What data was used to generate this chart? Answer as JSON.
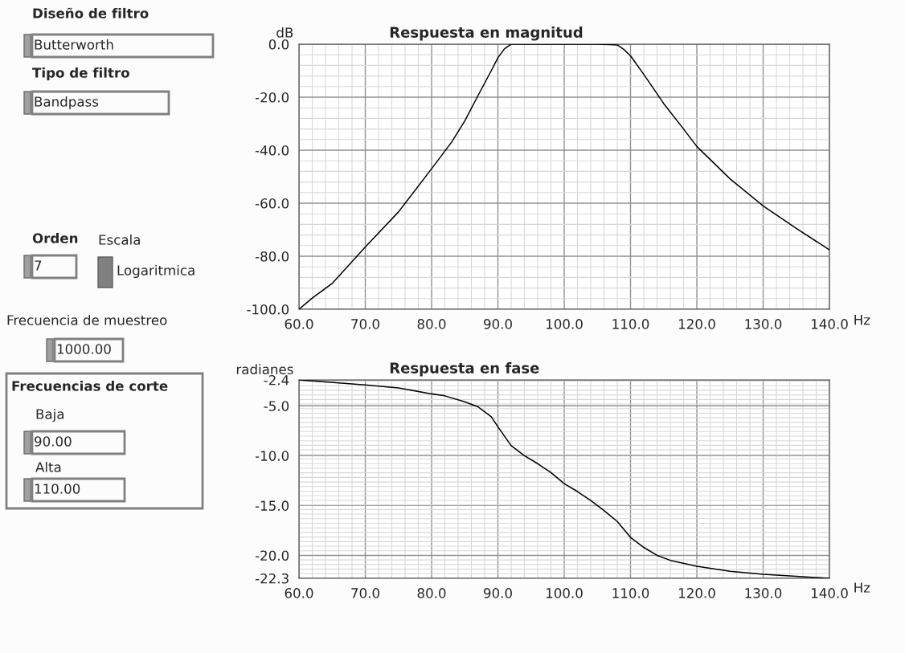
{
  "chart_data": [
    {
      "type": "other",
      "annotations": [
        "Diseño de filtro",
        "Butterworth",
        "Tipo de filtro",
        "Bandpass",
        "Orden",
        "7",
        "Escala",
        "Logaritmica",
        "Frecuencia de muestreo",
        "1000.00",
        "Frecuencias de corte",
        "Baja",
        "90.00",
        "Alta",
        "110.00"
      ]
    },
    {
      "type": "line",
      "title": "Respuesta en magnitud",
      "ylabel": "dB",
      "xlabel": "Hz",
      "x": [
        60,
        62,
        65,
        70,
        75,
        80,
        83,
        85,
        87,
        89,
        90,
        91,
        92,
        95,
        100,
        105,
        108,
        109,
        110,
        112,
        115,
        118,
        120,
        125,
        130,
        135,
        140
      ],
      "series": [
        {
          "color": "#000000",
          "values": [
            -100,
            -95.8,
            -90.3,
            -76.5,
            -63.3,
            -47,
            -37,
            -29,
            -19.4,
            -10,
            -5.1,
            -1.7,
            0,
            0,
            0,
            0,
            -0.3,
            -2,
            -4.4,
            -11.4,
            -22.4,
            -32,
            -38.6,
            -50.8,
            -61,
            -69.5,
            -77.6
          ]
        }
      ],
      "xlim": [
        60,
        140
      ],
      "ylim": [
        -100,
        0
      ],
      "xticks": [
        {
          "value": 60,
          "label": "60.0"
        },
        {
          "value": 70,
          "label": "70.0"
        },
        {
          "value": 80,
          "label": "80.0"
        },
        {
          "value": 90,
          "label": "90.0"
        },
        {
          "value": 100,
          "label": "100.0"
        },
        {
          "value": 110,
          "label": "110.0"
        },
        {
          "value": 120,
          "label": "120.0"
        },
        {
          "value": 130,
          "label": "130.0"
        },
        {
          "value": 140,
          "label": "140.0"
        }
      ],
      "yticks": [
        {
          "value": -100,
          "label": "-100.0"
        },
        {
          "value": -80,
          "label": "-80.0"
        },
        {
          "value": -60,
          "label": "-60.0"
        },
        {
          "value": -40,
          "label": "-40.0"
        },
        {
          "value": -20,
          "label": "-20.0"
        },
        {
          "value": 0,
          "label": "0.0"
        }
      ],
      "grid": true
    },
    {
      "type": "line",
      "title": "Respuesta en fase",
      "ylabel": "radianes",
      "xlabel": "Hz",
      "x": [
        60,
        70,
        75,
        80,
        82,
        85,
        87,
        89,
        90,
        92,
        94,
        96,
        98,
        100,
        102,
        104,
        106,
        108,
        110,
        112,
        114,
        116,
        120,
        125,
        130,
        135,
        140
      ],
      "series": [
        {
          "color": "#000000",
          "values": [
            -2.4,
            -2.9,
            -3.2,
            -3.8,
            -4.0,
            -4.6,
            -5.1,
            -6.1,
            -7.1,
            -9.0,
            -10.0,
            -10.8,
            -11.7,
            -12.8,
            -13.6,
            -14.5,
            -15.5,
            -16.6,
            -18.2,
            -19.2,
            -20.0,
            -20.5,
            -21.1,
            -21.6,
            -21.9,
            -22.1,
            -22.3
          ]
        }
      ],
      "xlim": [
        60,
        140
      ],
      "ylim": [
        -22.3,
        -2.4
      ],
      "xticks": [
        {
          "value": 60,
          "label": "60.0"
        },
        {
          "value": 70,
          "label": "70.0"
        },
        {
          "value": 80,
          "label": "80.0"
        },
        {
          "value": 90,
          "label": "90.0"
        },
        {
          "value": 100,
          "label": "100.0"
        },
        {
          "value": 110,
          "label": "110.0"
        },
        {
          "value": 120,
          "label": "120.0"
        },
        {
          "value": 130,
          "label": "130.0"
        },
        {
          "value": 140,
          "label": "140.0"
        }
      ],
      "yticks": [
        {
          "value": -22.3,
          "label": "-22.3"
        },
        {
          "value": -20,
          "label": "-20.0"
        },
        {
          "value": -15,
          "label": "-15.0"
        },
        {
          "value": -10,
          "label": "-10.0"
        },
        {
          "value": -5,
          "label": "-5.0"
        },
        {
          "value": -2.4,
          "label": "-2.4"
        }
      ],
      "grid": true
    }
  ]
}
